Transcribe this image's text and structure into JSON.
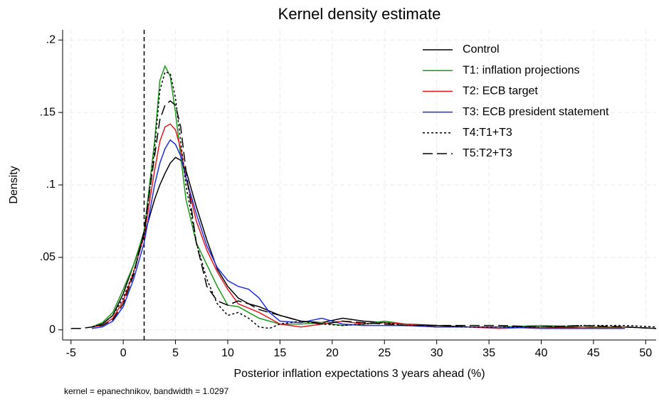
{
  "chart_data": {
    "type": "line",
    "title": "Kernel density estimate",
    "x_label": "Posterior inflation expectations 3 years ahead (%)",
    "y_label": "Density",
    "note": "kernel = epanechnikov, bandwidth = 1.0297",
    "x": [
      -5,
      -4,
      -3,
      -2,
      -1,
      0,
      1,
      2,
      3,
      3.5,
      4,
      4.5,
      5,
      5.5,
      6,
      7,
      8,
      9,
      10,
      11,
      12,
      13,
      14,
      15,
      17,
      19,
      21,
      23,
      25,
      27,
      30,
      33,
      36,
      40,
      44,
      48,
      51
    ],
    "series": [
      {
        "name": "Control",
        "color": "#000000",
        "linestyle": "solid",
        "values": [
          null,
          null,
          0.002,
          0.004,
          0.01,
          0.025,
          0.045,
          0.065,
          0.09,
          0.1,
          0.108,
          0.115,
          0.119,
          0.117,
          0.11,
          0.085,
          0.062,
          0.042,
          0.03,
          0.022,
          0.018,
          0.016,
          0.013,
          0.01,
          0.006,
          0.005,
          0.008,
          0.006,
          0.005,
          0.004,
          0.003,
          0.002,
          0.002,
          0.002,
          0.001,
          0.002,
          0.001
        ]
      },
      {
        "name": "T1: inflation projections",
        "color": "#1a9a1a",
        "linestyle": "solid",
        "values": [
          null,
          null,
          0.002,
          0.005,
          0.012,
          0.028,
          0.045,
          0.068,
          0.13,
          0.172,
          0.182,
          0.175,
          0.15,
          0.12,
          0.09,
          0.06,
          0.045,
          0.03,
          0.017,
          0.016,
          0.012,
          0.008,
          0.006,
          0.004,
          0.004,
          0.005,
          0.003,
          0.004,
          0.006,
          0.004,
          0.002,
          0.002,
          0.002,
          0.003,
          0.002,
          0.001,
          null
        ]
      },
      {
        "name": "T2: ECB target",
        "color": "#e8161b",
        "linestyle": "solid",
        "values": [
          null,
          null,
          0.002,
          0.003,
          0.008,
          0.02,
          0.04,
          0.065,
          0.11,
          0.13,
          0.14,
          0.142,
          0.138,
          0.125,
          0.105,
          0.075,
          0.055,
          0.04,
          0.028,
          0.018,
          0.015,
          0.012,
          0.008,
          0.004,
          0.002,
          0.004,
          0.006,
          0.004,
          0.005,
          0.004,
          0.002,
          0.002,
          0.001,
          0.002,
          0.002,
          0.002,
          null
        ]
      },
      {
        "name": "T3: ECB president statement",
        "color": "#1f2ee8",
        "linestyle": "solid",
        "values": [
          null,
          null,
          0.001,
          0.002,
          0.006,
          0.016,
          0.035,
          0.06,
          0.1,
          0.115,
          0.125,
          0.131,
          0.128,
          0.12,
          0.105,
          0.08,
          0.058,
          0.043,
          0.034,
          0.03,
          0.028,
          0.022,
          0.012,
          0.006,
          0.005,
          0.008,
          0.004,
          0.003,
          0.003,
          0.003,
          0.002,
          0.002,
          0.002,
          0.001,
          0.001,
          0.001,
          null
        ]
      },
      {
        "name": "T4:T1+T3",
        "color": "#000000",
        "linestyle": "dotted",
        "values": [
          null,
          null,
          0.002,
          0.004,
          0.01,
          0.022,
          0.04,
          0.065,
          0.125,
          0.165,
          0.178,
          0.177,
          0.16,
          0.13,
          0.1,
          0.06,
          0.035,
          0.018,
          0.01,
          0.012,
          0.008,
          0.002,
          0.001,
          0.004,
          0.006,
          0.004,
          0.003,
          0.004,
          0.005,
          0.003,
          0.003,
          0.002,
          0.002,
          0.002,
          0.003,
          0.003,
          0.002
        ]
      },
      {
        "name": "T5:T2+T3",
        "color": "#000000",
        "linestyle": "longdash",
        "values": [
          0.001,
          0.001,
          0.002,
          0.003,
          0.007,
          0.018,
          0.038,
          0.068,
          0.12,
          0.145,
          0.155,
          0.158,
          0.155,
          0.14,
          0.11,
          0.06,
          0.03,
          0.02,
          0.017,
          0.02,
          0.018,
          0.014,
          0.012,
          0.01,
          0.006,
          0.004,
          0.006,
          0.005,
          0.004,
          0.003,
          0.003,
          0.003,
          0.003,
          0.002,
          0.003,
          0.002,
          0.001
        ]
      }
    ],
    "xline": 2,
    "xlim": [
      -5.8,
      51
    ],
    "ylim": [
      -0.007,
      0.207
    ],
    "xticks": [
      -5,
      0,
      5,
      10,
      15,
      20,
      25,
      30,
      35,
      40,
      45,
      50
    ],
    "yticks": [
      0,
      {
        "value": 0.05,
        "label": ".05"
      },
      {
        "value": 0.1,
        "label": ".1"
      },
      {
        "value": 0.15,
        "label": ".15"
      },
      {
        "value": 0.2,
        "label": ".2"
      }
    ],
    "grid": true,
    "legend": "upper right"
  }
}
